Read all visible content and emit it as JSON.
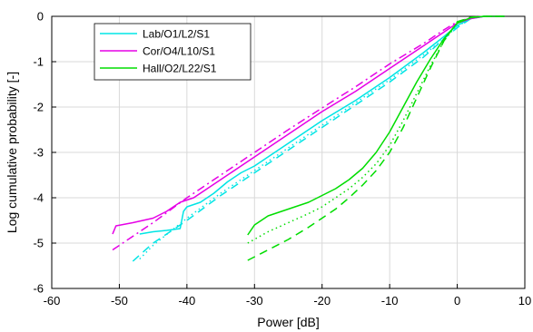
{
  "chart_data": {
    "type": "line",
    "title": "",
    "xlabel": "Power [dB]",
    "ylabel": "Log cumulative probability [-]",
    "xlim": [
      -60,
      10
    ],
    "ylim": [
      -6,
      0
    ],
    "xticks": [
      -60,
      -50,
      -40,
      -30,
      -20,
      -10,
      0,
      10
    ],
    "yticks": [
      -6,
      -5,
      -4,
      -3,
      -2,
      -1,
      0
    ],
    "grid": true,
    "legend_position": "top-left",
    "series": [
      {
        "name": "Lab/O1/L2/S1",
        "color": "#00e5e5",
        "style": "solid",
        "in_legend": true,
        "points": [
          [
            -47,
            -4.8
          ],
          [
            -45,
            -4.75
          ],
          [
            -43,
            -4.72
          ],
          [
            -41,
            -4.68
          ],
          [
            -40.5,
            -4.3
          ],
          [
            -40,
            -4.2
          ],
          [
            -38,
            -4.1
          ],
          [
            -36,
            -3.9
          ],
          [
            -34,
            -3.65
          ],
          [
            -32,
            -3.45
          ],
          [
            -30,
            -3.3
          ],
          [
            -25,
            -2.8
          ],
          [
            -20,
            -2.3
          ],
          [
            -15,
            -1.85
          ],
          [
            -10,
            -1.35
          ],
          [
            -5,
            -0.8
          ],
          [
            -2,
            -0.45
          ],
          [
            0,
            -0.2
          ],
          [
            2,
            -0.05
          ],
          [
            4,
            0
          ],
          [
            7,
            0
          ]
        ]
      },
      {
        "name": "Lab/O1/L2/S1 (dashed)",
        "color": "#00e5e5",
        "style": "dashed",
        "in_legend": false,
        "points": [
          [
            -48,
            -5.4
          ],
          [
            -45,
            -5.0
          ],
          [
            -40,
            -4.5
          ],
          [
            -35,
            -3.95
          ],
          [
            -30,
            -3.45
          ],
          [
            -25,
            -2.95
          ],
          [
            -20,
            -2.45
          ],
          [
            -15,
            -1.95
          ],
          [
            -10,
            -1.45
          ],
          [
            -5,
            -0.9
          ],
          [
            -2,
            -0.5
          ],
          [
            0,
            -0.25
          ],
          [
            2,
            -0.05
          ],
          [
            4,
            0
          ],
          [
            7,
            0
          ]
        ]
      },
      {
        "name": "Lab/O1/L2/S1 (dotted)",
        "color": "#00e5e5",
        "style": "dotted",
        "in_legend": false,
        "points": [
          [
            -47,
            -5.35
          ],
          [
            -45,
            -5.05
          ],
          [
            -40,
            -4.45
          ],
          [
            -35,
            -3.9
          ],
          [
            -30,
            -3.4
          ],
          [
            -25,
            -2.9
          ],
          [
            -20,
            -2.4
          ],
          [
            -15,
            -1.9
          ],
          [
            -10,
            -1.4
          ],
          [
            -5,
            -0.85
          ],
          [
            -2,
            -0.5
          ],
          [
            0,
            -0.22
          ],
          [
            2,
            -0.05
          ],
          [
            4,
            0
          ],
          [
            7,
            0
          ]
        ]
      },
      {
        "name": "Cor/O4/L10/S1",
        "color": "#e600e6",
        "style": "solid",
        "in_legend": true,
        "points": [
          [
            -51,
            -4.8
          ],
          [
            -50.5,
            -4.62
          ],
          [
            -48,
            -4.55
          ],
          [
            -45,
            -4.45
          ],
          [
            -43,
            -4.3
          ],
          [
            -41,
            -4.1
          ],
          [
            -39,
            -4.0
          ],
          [
            -37,
            -3.8
          ],
          [
            -35,
            -3.6
          ],
          [
            -30,
            -3.1
          ],
          [
            -25,
            -2.6
          ],
          [
            -20,
            -2.1
          ],
          [
            -15,
            -1.65
          ],
          [
            -10,
            -1.15
          ],
          [
            -5,
            -0.65
          ],
          [
            -2,
            -0.35
          ],
          [
            0,
            -0.15
          ],
          [
            2,
            -0.05
          ],
          [
            4,
            0
          ],
          [
            7,
            0
          ]
        ]
      },
      {
        "name": "Cor/O4/L10/S1 (dash-dot)",
        "color": "#e600e6",
        "style": "dashdot",
        "in_legend": false,
        "points": [
          [
            -51,
            -5.15
          ],
          [
            -48,
            -4.85
          ],
          [
            -45,
            -4.55
          ],
          [
            -40,
            -4.0
          ],
          [
            -35,
            -3.5
          ],
          [
            -30,
            -3.0
          ],
          [
            -25,
            -2.5
          ],
          [
            -20,
            -2.02
          ],
          [
            -15,
            -1.55
          ],
          [
            -10,
            -1.05
          ],
          [
            -5,
            -0.6
          ],
          [
            -2,
            -0.3
          ],
          [
            0,
            -0.12
          ],
          [
            2,
            -0.03
          ],
          [
            4,
            0
          ],
          [
            7,
            0
          ]
        ]
      },
      {
        "name": "Hall/O2/L22/S1",
        "color": "#00dd00",
        "style": "solid",
        "in_legend": true,
        "points": [
          [
            -31,
            -4.82
          ],
          [
            -30,
            -4.6
          ],
          [
            -28,
            -4.4
          ],
          [
            -26,
            -4.3
          ],
          [
            -24,
            -4.2
          ],
          [
            -22,
            -4.1
          ],
          [
            -20,
            -3.95
          ],
          [
            -18,
            -3.8
          ],
          [
            -16,
            -3.6
          ],
          [
            -14,
            -3.35
          ],
          [
            -12,
            -3.0
          ],
          [
            -10,
            -2.55
          ],
          [
            -8,
            -2.0
          ],
          [
            -6,
            -1.45
          ],
          [
            -4,
            -0.95
          ],
          [
            -2,
            -0.5
          ],
          [
            0,
            -0.15
          ],
          [
            2,
            -0.03
          ],
          [
            4,
            0
          ],
          [
            7,
            0
          ]
        ]
      },
      {
        "name": "Hall/O2/L22/S1 (dotted)",
        "color": "#00dd00",
        "style": "dotted",
        "in_legend": false,
        "points": [
          [
            -31,
            -5.0
          ],
          [
            -28,
            -4.75
          ],
          [
            -25,
            -4.55
          ],
          [
            -22,
            -4.35
          ],
          [
            -20,
            -4.2
          ],
          [
            -18,
            -4.0
          ],
          [
            -16,
            -3.8
          ],
          [
            -14,
            -3.55
          ],
          [
            -12,
            -3.25
          ],
          [
            -10,
            -2.85
          ],
          [
            -8,
            -2.3
          ],
          [
            -6,
            -1.7
          ],
          [
            -4,
            -1.1
          ],
          [
            -2,
            -0.55
          ],
          [
            0,
            -0.15
          ],
          [
            2,
            -0.03
          ],
          [
            4,
            0
          ],
          [
            7,
            0
          ]
        ]
      },
      {
        "name": "Hall/O2/L22/S1 (dashed)",
        "color": "#00dd00",
        "style": "dashed",
        "in_legend": false,
        "points": [
          [
            -31,
            -5.38
          ],
          [
            -28,
            -5.15
          ],
          [
            -25,
            -4.92
          ],
          [
            -22,
            -4.65
          ],
          [
            -20,
            -4.45
          ],
          [
            -18,
            -4.25
          ],
          [
            -16,
            -4.0
          ],
          [
            -14,
            -3.72
          ],
          [
            -12,
            -3.4
          ],
          [
            -10,
            -3.0
          ],
          [
            -8,
            -2.45
          ],
          [
            -6,
            -1.8
          ],
          [
            -4,
            -1.15
          ],
          [
            -2,
            -0.55
          ],
          [
            0,
            -0.12
          ],
          [
            2,
            -0.02
          ],
          [
            4,
            0
          ],
          [
            7,
            0
          ]
        ]
      }
    ]
  }
}
